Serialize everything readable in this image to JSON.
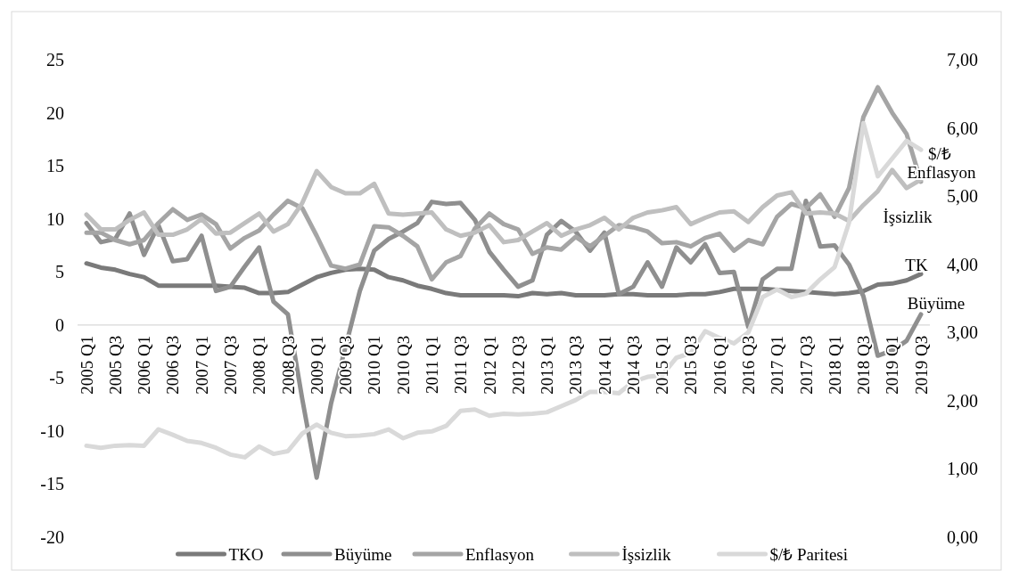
{
  "chart_data": {
    "type": "line",
    "categories": [
      "2005 Q1",
      null,
      "2005 Q3",
      null,
      "2006 Q1",
      null,
      "2006 Q3",
      null,
      "2007 Q1",
      null,
      "2007 Q3",
      null,
      "2008 Q1",
      null,
      "2008 Q3",
      null,
      "2009 Q1",
      null,
      "2009 Q3",
      null,
      "2010 Q1",
      null,
      "2010 Q3",
      null,
      "2011 Q1",
      null,
      "2011 Q3",
      null,
      "2012 Q1",
      null,
      "2012 Q3",
      null,
      "2013 Q1",
      null,
      "2013 Q3",
      null,
      "2014 Q1",
      null,
      "2014 Q3",
      null,
      "2015 Q1",
      null,
      "2015 Q3",
      null,
      "2016 Q1",
      null,
      "2016 Q3",
      null,
      "2017 Q1",
      null,
      "2017 Q3",
      null,
      "2018 Q1",
      null,
      "2018 Q3",
      null,
      "2019 Q1",
      null,
      "2019 Q3"
    ],
    "series": [
      {
        "name": "TKO",
        "color": "#7a7a7a",
        "values": [
          5.8,
          5.4,
          5.2,
          4.8,
          4.5,
          3.7,
          3.7,
          3.7,
          3.7,
          3.7,
          3.6,
          3.5,
          3.0,
          3.0,
          3.1,
          3.8,
          4.5,
          4.9,
          5.2,
          5.3,
          5.2,
          4.5,
          4.2,
          3.7,
          3.4,
          3.0,
          2.8,
          2.8,
          2.8,
          2.8,
          2.7,
          3.0,
          2.9,
          3.0,
          2.8,
          2.8,
          2.8,
          2.9,
          2.9,
          2.8,
          2.8,
          2.8,
          2.9,
          2.9,
          3.1,
          3.4,
          3.4,
          3.4,
          3.3,
          3.2,
          3.1,
          3.0,
          2.9,
          3.0,
          3.2,
          3.8,
          3.9,
          4.2,
          4.8
        ]
      },
      {
        "name": "Büyüme",
        "color": "#8f8f8f",
        "values": [
          9.6,
          7.8,
          8.1,
          10.5,
          6.6,
          9.4,
          6.0,
          6.2,
          8.4,
          3.2,
          3.6,
          5.5,
          7.3,
          2.2,
          1.0,
          -7.0,
          -14.4,
          -7.4,
          -2.1,
          3.2,
          7.0,
          8.1,
          8.8,
          9.6,
          11.6,
          11.4,
          11.5,
          9.9,
          6.9,
          5.2,
          3.6,
          4.2,
          8.5,
          9.8,
          8.8,
          7.0,
          8.7,
          2.9,
          3.6,
          5.9,
          3.6,
          7.3,
          5.9,
          7.6,
          4.9,
          5.0,
          -0.2,
          4.3,
          5.3,
          5.3,
          11.7,
          7.4,
          7.5,
          5.7,
          2.7,
          -2.9,
          -2.4,
          -1.5,
          1.0
        ]
      },
      {
        "name": "Enflasyon",
        "color": "#a5a5a5",
        "values": [
          8.7,
          8.7,
          8.0,
          7.6,
          8.0,
          9.6,
          10.9,
          9.9,
          10.4,
          9.5,
          7.2,
          8.2,
          8.9,
          10.4,
          11.7,
          11.0,
          8.4,
          5.6,
          5.3,
          5.7,
          9.3,
          9.2,
          8.4,
          7.4,
          4.3,
          5.9,
          6.5,
          9.1,
          10.5,
          9.5,
          9.0,
          6.7,
          7.3,
          7.1,
          8.3,
          7.4,
          8.4,
          9.4,
          9.2,
          8.8,
          7.7,
          7.8,
          7.4,
          8.2,
          8.6,
          7.0,
          8.0,
          7.6,
          10.2,
          11.4,
          11.0,
          12.3,
          10.2,
          12.9,
          19.6,
          22.4,
          20.0,
          18.0,
          13.5
        ]
      },
      {
        "name": "İşsizlik",
        "color": "#bfbfbf",
        "values": [
          10.4,
          9.0,
          9.0,
          9.9,
          10.6,
          8.5,
          8.5,
          9.0,
          10.0,
          8.6,
          8.7,
          9.6,
          10.5,
          8.8,
          9.5,
          11.5,
          14.5,
          13.0,
          12.4,
          12.4,
          13.3,
          10.5,
          10.4,
          10.5,
          10.6,
          9.0,
          8.4,
          8.7,
          9.4,
          7.8,
          8.0,
          8.8,
          9.6,
          8.4,
          9.0,
          9.4,
          10.1,
          9.0,
          10.1,
          10.6,
          10.8,
          11.1,
          9.5,
          10.1,
          10.6,
          10.7,
          9.7,
          11.1,
          12.2,
          12.5,
          10.5,
          10.6,
          10.5,
          9.8,
          11.3,
          12.6,
          14.6,
          12.9,
          13.7
        ]
      },
      {
        "name": "$/₺ Paritesi",
        "color": "#d9d9d9",
        "axis": "y2",
        "values": [
          1.34,
          1.31,
          1.34,
          1.35,
          1.34,
          1.58,
          1.5,
          1.41,
          1.38,
          1.31,
          1.21,
          1.17,
          1.33,
          1.22,
          1.26,
          1.52,
          1.65,
          1.53,
          1.48,
          1.49,
          1.51,
          1.58,
          1.45,
          1.53,
          1.55,
          1.63,
          1.85,
          1.87,
          1.78,
          1.81,
          1.8,
          1.81,
          1.83,
          1.92,
          2.01,
          2.13,
          2.13,
          2.11,
          2.28,
          2.35,
          2.37,
          2.63,
          2.7,
          3.02,
          2.92,
          2.84,
          3.0,
          3.52,
          3.63,
          3.52,
          3.57,
          3.78,
          3.96,
          4.61,
          6.07,
          5.29,
          5.55,
          5.81,
          5.68
        ]
      }
    ],
    "ylim": [
      -20,
      25
    ],
    "yticks": [
      -20,
      -15,
      -10,
      -5,
      0,
      5,
      10,
      15,
      20,
      25
    ],
    "y2lim": [
      0,
      7
    ],
    "y2ticks": [
      {
        "value": 0,
        "label": "0,00"
      },
      {
        "value": 1,
        "label": "1,00"
      },
      {
        "value": 2,
        "label": "2,00"
      },
      {
        "value": 3,
        "label": "3,00"
      },
      {
        "value": 4,
        "label": "4,00"
      },
      {
        "value": 5,
        "label": "5,00"
      },
      {
        "value": 6,
        "label": "6,00"
      },
      {
        "value": 7,
        "label": "7,00"
      }
    ],
    "annotations": [
      "$/₺",
      "Enflasyon",
      "İşsizlik",
      "TK",
      "Büyüme"
    ],
    "grid": false,
    "legend": "bottom",
    "marker": "none",
    "line_style": "solid"
  }
}
